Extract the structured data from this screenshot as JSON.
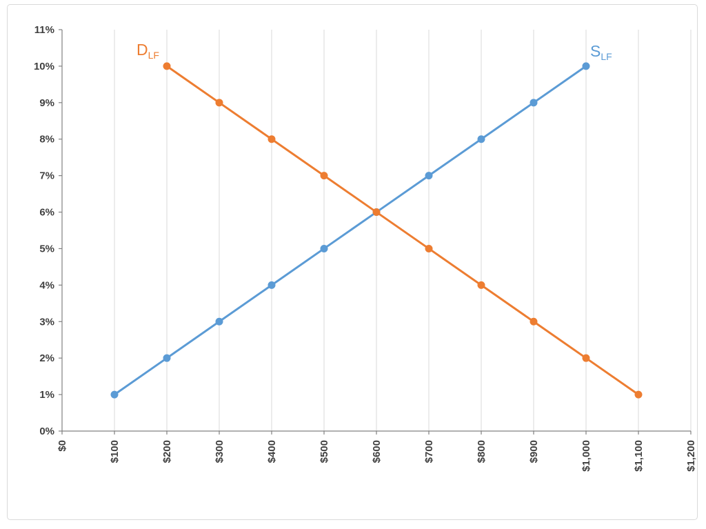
{
  "figure": {
    "background": "#FFFFFF",
    "border_color": "#D9D9D9"
  },
  "chart_data": {
    "type": "line",
    "title": "",
    "xlabel": "",
    "ylabel": "",
    "xlim": [
      0,
      1200
    ],
    "ylim": [
      0,
      11
    ],
    "grid": "vertical-only",
    "legend": "inline-series-labels",
    "colors": {
      "grid": "#D9D9D9",
      "axis": "#808080",
      "tick_labels": "#404040",
      "demand": "#ED7D31",
      "supply": "#5B9BD5"
    },
    "x_ticks": [
      {
        "value": 0,
        "label": "$0"
      },
      {
        "value": 100,
        "label": "$100"
      },
      {
        "value": 200,
        "label": "$200"
      },
      {
        "value": 300,
        "label": "$300"
      },
      {
        "value": 400,
        "label": "$400"
      },
      {
        "value": 500,
        "label": "$500"
      },
      {
        "value": 600,
        "label": "$600"
      },
      {
        "value": 700,
        "label": "$700"
      },
      {
        "value": 800,
        "label": "$800"
      },
      {
        "value": 900,
        "label": "$900"
      },
      {
        "value": 1000,
        "label": "$1,000"
      },
      {
        "value": 1100,
        "label": "$1,100"
      },
      {
        "value": 1200,
        "label": "$1,200"
      }
    ],
    "y_ticks": [
      {
        "value": 0,
        "label": "0%"
      },
      {
        "value": 1,
        "label": "1%"
      },
      {
        "value": 2,
        "label": "2%"
      },
      {
        "value": 3,
        "label": "3%"
      },
      {
        "value": 4,
        "label": "4%"
      },
      {
        "value": 5,
        "label": "5%"
      },
      {
        "value": 6,
        "label": "6%"
      },
      {
        "value": 7,
        "label": "7%"
      },
      {
        "value": 8,
        "label": "8%"
      },
      {
        "value": 9,
        "label": "9%"
      },
      {
        "value": 10,
        "label": "10%"
      },
      {
        "value": 11,
        "label": "11%"
      }
    ],
    "series": [
      {
        "name": "supply-loanable-funds",
        "label": "S",
        "label_sub": "LF",
        "color": "#5B9BD5",
        "label_at": [
          1000,
          10
        ],
        "points": [
          [
            100,
            1
          ],
          [
            200,
            2
          ],
          [
            300,
            3
          ],
          [
            400,
            4
          ],
          [
            500,
            5
          ],
          [
            600,
            6
          ],
          [
            700,
            7
          ],
          [
            800,
            8
          ],
          [
            900,
            9
          ],
          [
            1000,
            10
          ]
        ]
      },
      {
        "name": "demand-loanable-funds",
        "label": "D",
        "label_sub": "LF",
        "color": "#ED7D31",
        "label_at": [
          200,
          10
        ],
        "points": [
          [
            200,
            10
          ],
          [
            300,
            9
          ],
          [
            400,
            8
          ],
          [
            500,
            7
          ],
          [
            600,
            6
          ],
          [
            700,
            5
          ],
          [
            800,
            4
          ],
          [
            900,
            3
          ],
          [
            1000,
            2
          ],
          [
            1100,
            1
          ]
        ]
      }
    ]
  }
}
